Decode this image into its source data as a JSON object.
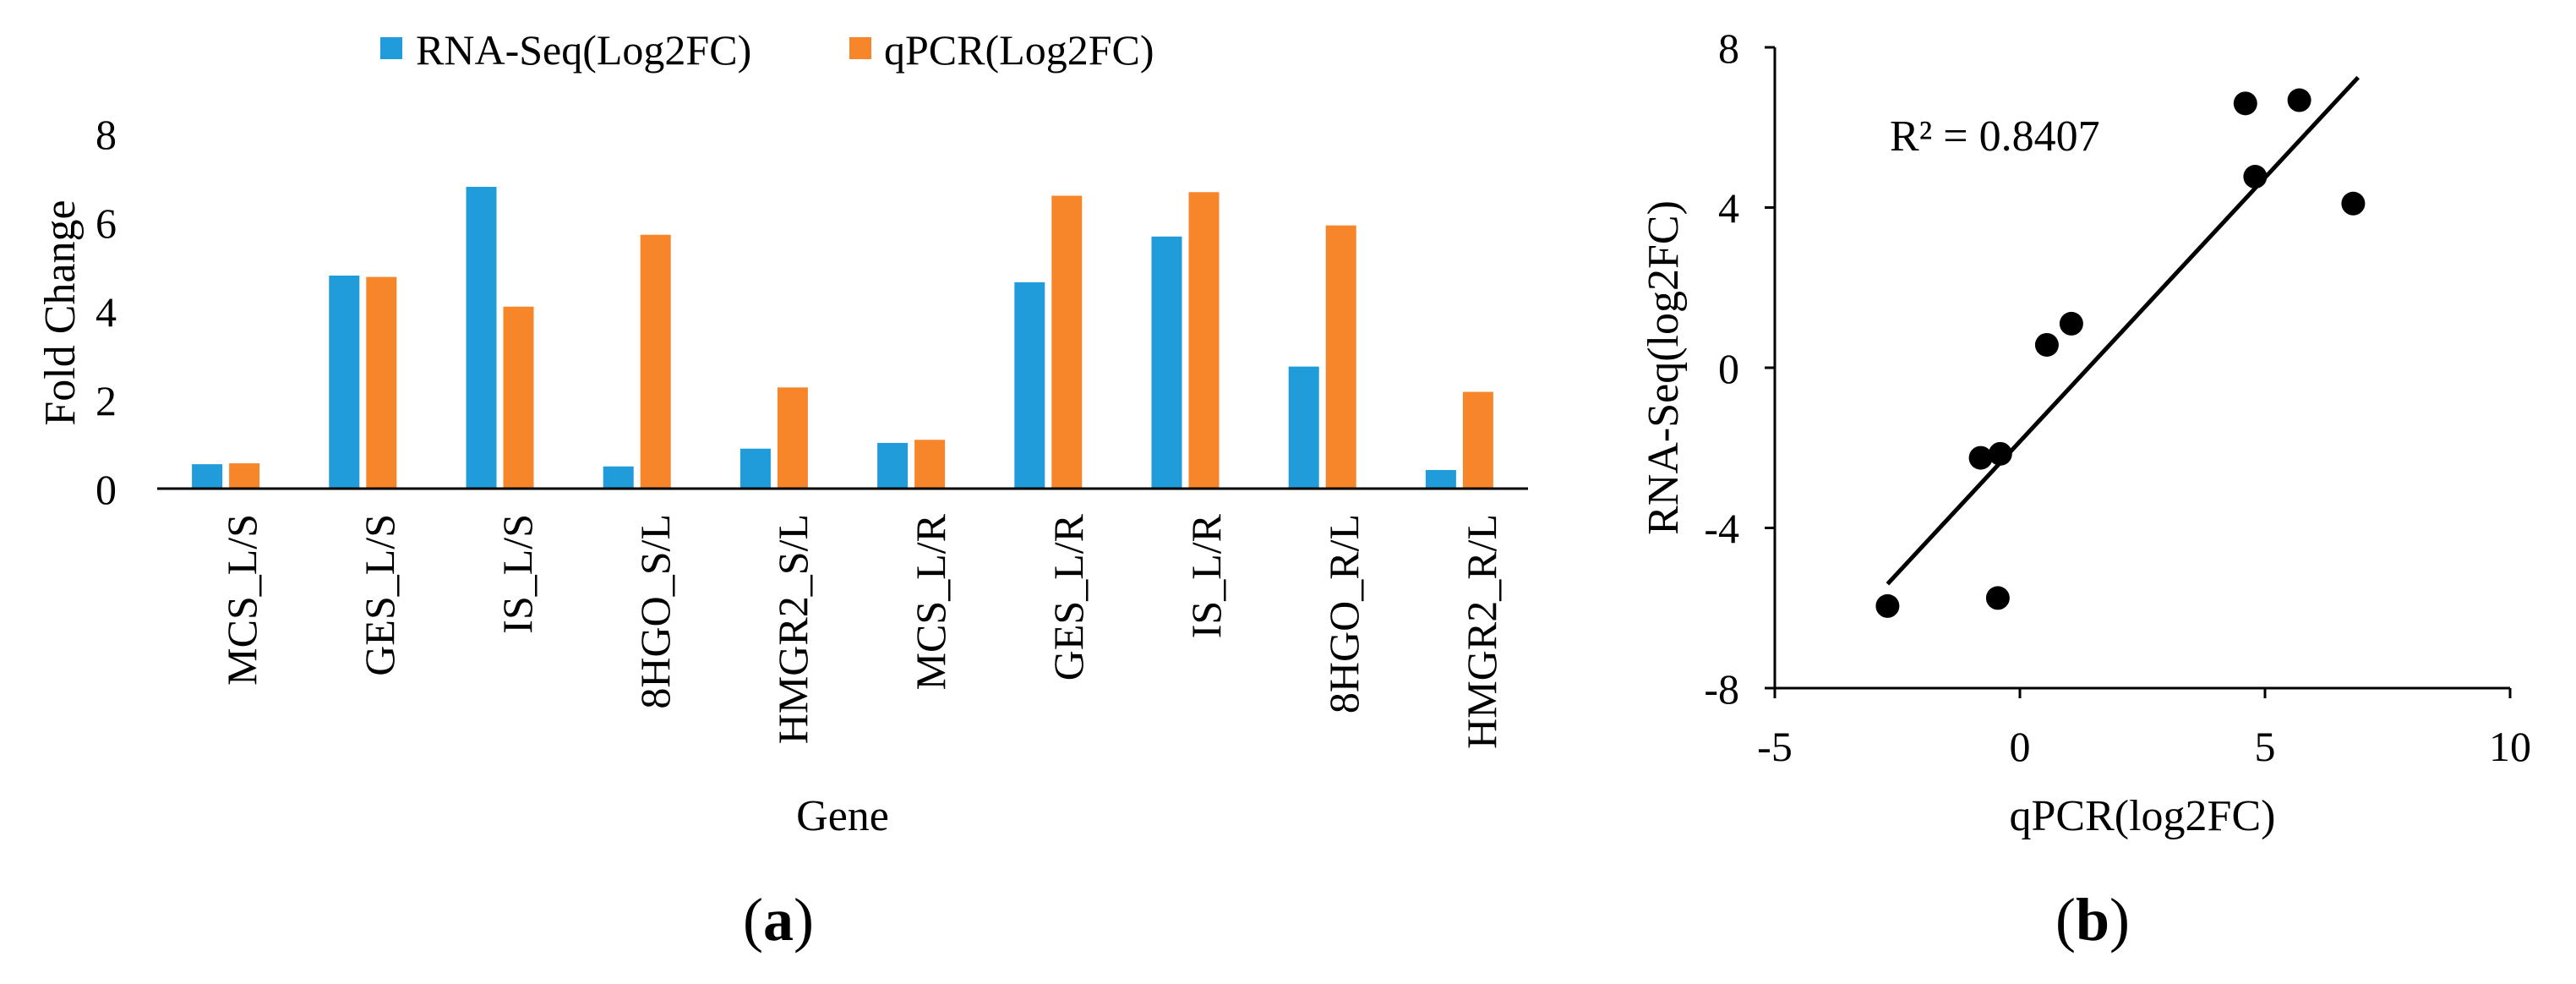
{
  "colors": {
    "series_a": "#1f9cd9",
    "series_b": "#f7862b",
    "axis": "#000000",
    "points": "#000000"
  },
  "panels": {
    "a": {
      "open": "(",
      "letter": "a",
      "close": ")"
    },
    "b": {
      "open": "(",
      "letter": "b",
      "close": ")"
    }
  },
  "chart_data": [
    {
      "type": "bar",
      "panel": "a",
      "title": "",
      "xlabel": "Gene",
      "ylabel": "Fold Change",
      "ylim": [
        0,
        8
      ],
      "yticks": [
        "0",
        "2",
        "4",
        "6",
        "8"
      ],
      "categories": [
        "MCS_L/S",
        "GES_L/S",
        "IS_L/S",
        "8HGO_S/L",
        "HMGR2_S/L",
        "MCS_L/R",
        "GES_L/R",
        "IS_L/R",
        "8HGO_R/L",
        "HMGR2_R/L"
      ],
      "series": [
        {
          "name": "RNA-Seq(Log2FC)",
          "values": [
            0.55,
            4.8,
            6.8,
            0.5,
            0.9,
            1.03,
            4.65,
            5.68,
            2.75,
            0.42
          ]
        },
        {
          "name": "qPCR(Log2FC)",
          "values": [
            0.57,
            4.77,
            4.1,
            5.72,
            2.28,
            1.1,
            6.6,
            6.68,
            5.93,
            2.18
          ]
        }
      ],
      "legend": "top",
      "grid": false
    },
    {
      "type": "scatter",
      "panel": "b",
      "title": "",
      "xlabel": "qPCR(log2FC)",
      "ylabel": "RNA-Seq(log2FC)",
      "xlim": [
        -5,
        10
      ],
      "ylim": [
        -8,
        8
      ],
      "xticks": [
        "-5",
        "0",
        "5",
        "10"
      ],
      "yticks": [
        "-8",
        "-4",
        "0",
        "4",
        "8"
      ],
      "points": [
        {
          "x": -2.7,
          "y": -5.95
        },
        {
          "x": -0.8,
          "y": -2.25
        },
        {
          "x": -0.4,
          "y": -2.15
        },
        {
          "x": -0.45,
          "y": -5.75
        },
        {
          "x": 0.55,
          "y": 0.57
        },
        {
          "x": 1.05,
          "y": 1.1
        },
        {
          "x": 4.6,
          "y": 6.6
        },
        {
          "x": 4.8,
          "y": 4.77
        },
        {
          "x": 5.7,
          "y": 6.68
        },
        {
          "x": 6.8,
          "y": 4.1
        }
      ],
      "trendline": {
        "x": [
          -2.7,
          6.9
        ],
        "y": [
          -5.4,
          7.25
        ]
      },
      "annotation": "R² = 0.8407",
      "grid": false
    }
  ]
}
